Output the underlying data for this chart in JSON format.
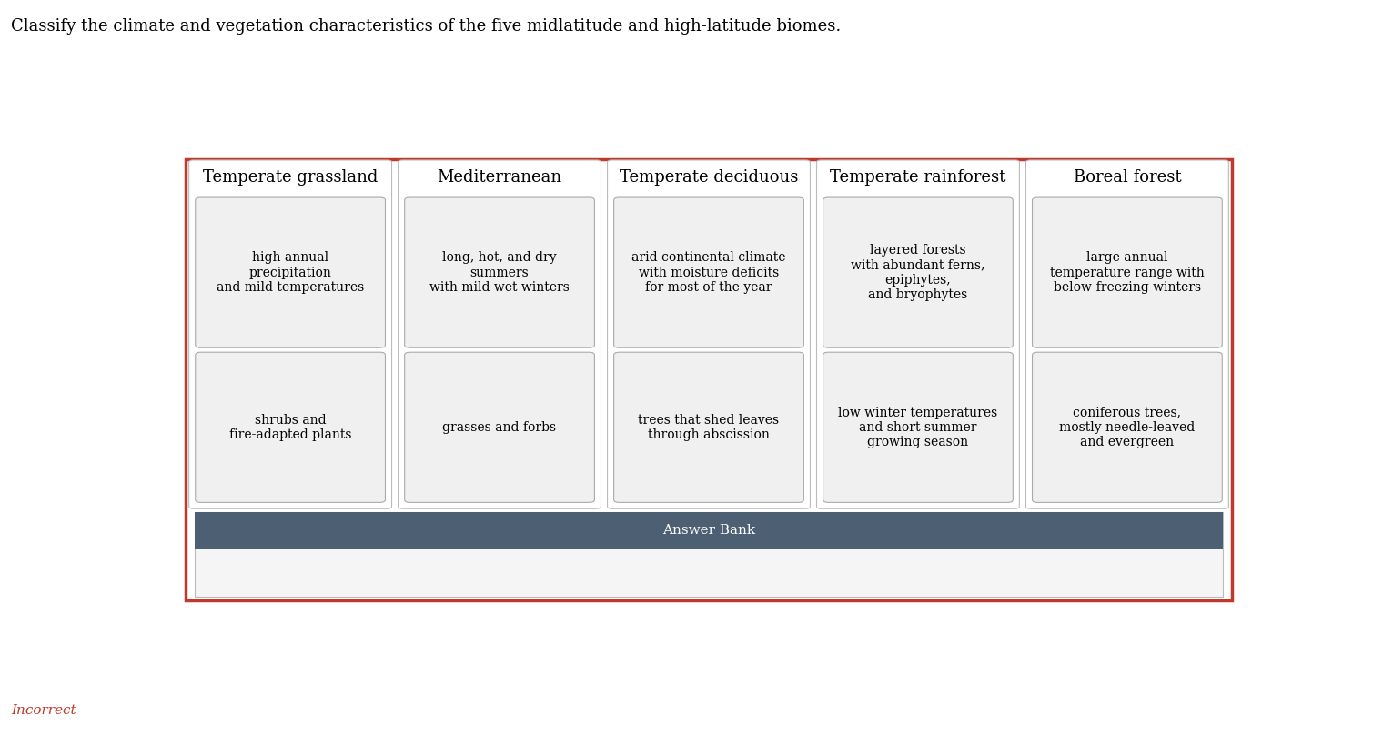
{
  "title": "Classify the climate and vegetation characteristics of the five midlatitude and high-latitude biomes.",
  "title_fontsize": 13,
  "background_color": "#ffffff",
  "outer_border_color": "#c0392b",
  "outer_border_linewidth": 2.5,
  "columns": [
    {
      "header": "Temperate grassland",
      "box1": "high annual\nprecipitation\nand mild temperatures",
      "box2": "shrubs and\nfire-adapted plants"
    },
    {
      "header": "Mediterranean",
      "box1": "long, hot, and dry\nsummers\nwith mild wet winters",
      "box2": "grasses and forbs"
    },
    {
      "header": "Temperate deciduous",
      "box1": "arid continental climate\nwith moisture deficits\nfor most of the year",
      "box2": "trees that shed leaves\nthrough abscission"
    },
    {
      "header": "Temperate rainforest",
      "box1": "layered forests\nwith abundant ferns,\nepiphytes,\nand bryophytes",
      "box2": "low winter temperatures\nand short summer\ngrowing season"
    },
    {
      "header": "Boreal forest",
      "box1": "large annual\ntemperature range with\nbelow-freezing winters",
      "box2": "coniferous trees,\nmostly needle-leaved\nand evergreen"
    }
  ],
  "answer_bank_label": "Answer Bank",
  "answer_bank_bg": "#4d5f72",
  "answer_bank_text_color": "#ffffff",
  "incorrect_label": "Incorrect",
  "incorrect_color": "#c0392b",
  "box_bg": "#f0f0f0",
  "box_border": "#aaaaaa",
  "col_bg": "#ffffff",
  "col_border": "#bbbbbb",
  "answer_area_bg": "#f5f5f5",
  "text_fontsize": 10,
  "header_fontsize": 13
}
